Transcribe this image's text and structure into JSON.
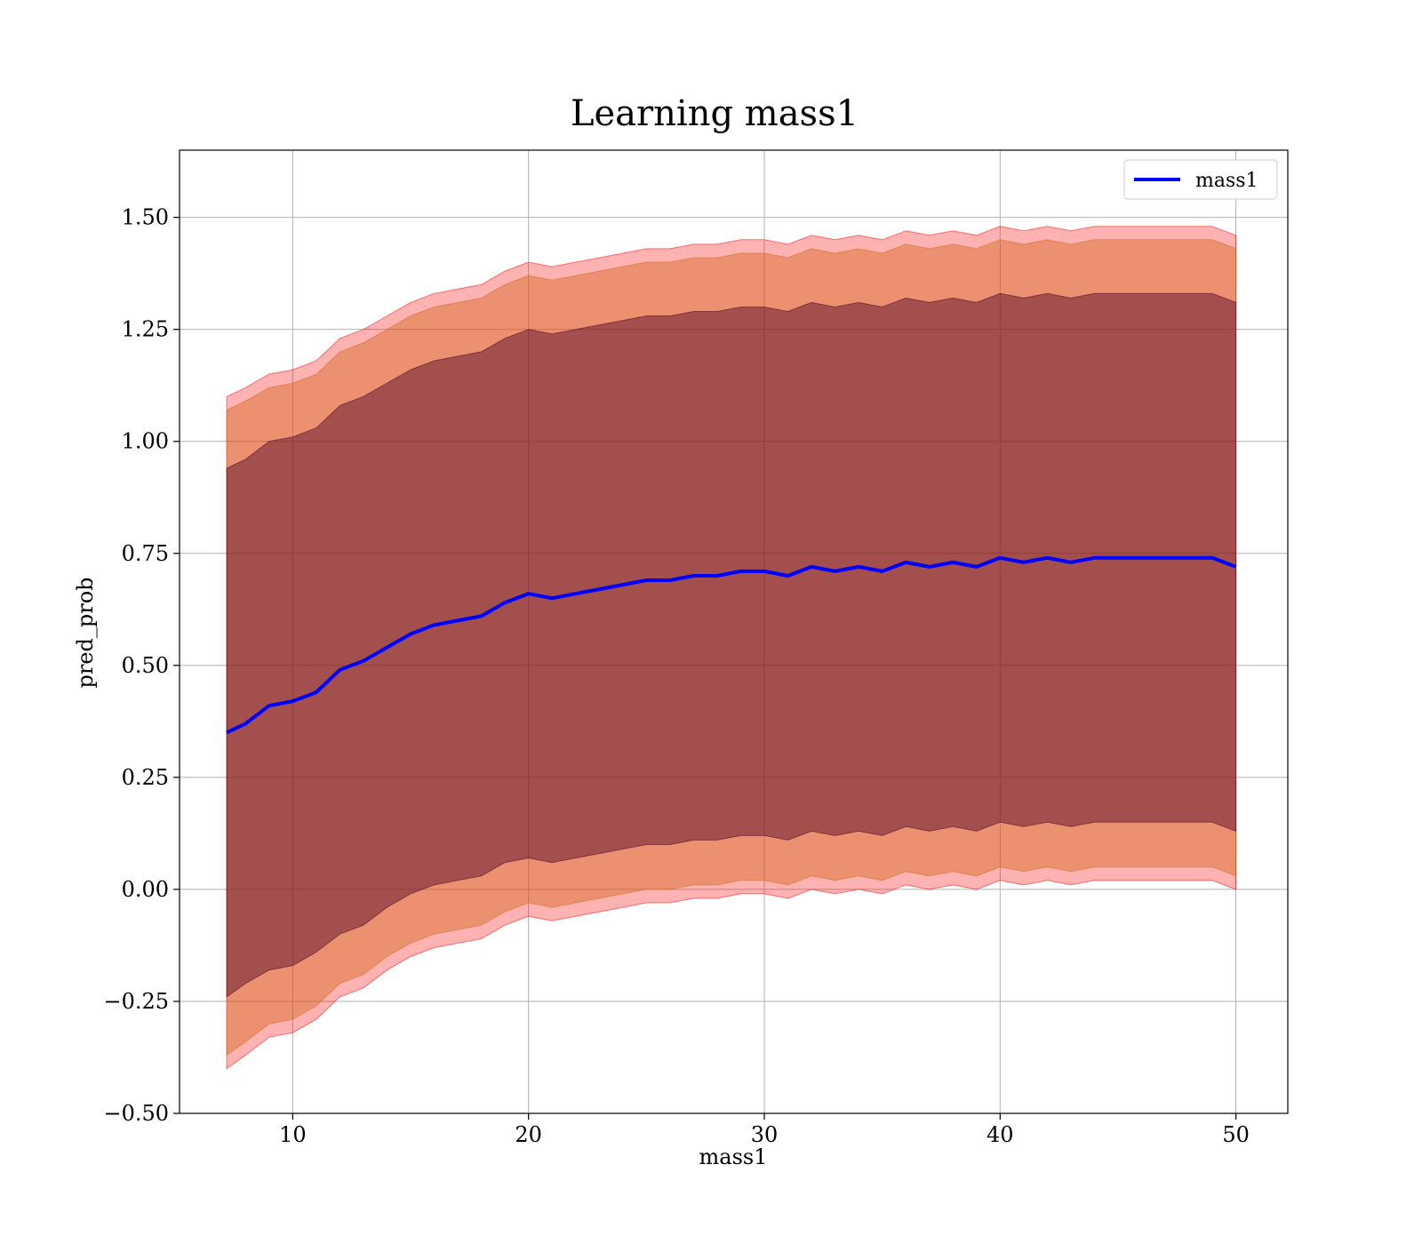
{
  "chart_data": {
    "type": "line",
    "title": "Learning mass1",
    "xlabel": "mass1",
    "ylabel": "pred_prob",
    "xlim": [
      5.2,
      52.2
    ],
    "ylim": [
      -0.5,
      1.65
    ],
    "xticks": [
      10,
      20,
      30,
      40,
      50
    ],
    "xtick_labels": [
      "10",
      "20",
      "30",
      "40",
      "50"
    ],
    "yticks": [
      -0.5,
      -0.25,
      0.0,
      0.25,
      0.5,
      0.75,
      1.0,
      1.25,
      1.5
    ],
    "ytick_labels": [
      "−0.50",
      "−0.25",
      "0.00",
      "0.25",
      "0.50",
      "0.75",
      "1.00",
      "1.25",
      "1.50"
    ],
    "grid": true,
    "legend": {
      "position": "top-right",
      "entries": [
        "mass1"
      ]
    },
    "colors": {
      "line": "#0000ff",
      "band_outer": "#ff0000",
      "band_middle": "#d2691e",
      "band_inner": "#4b0026"
    },
    "series": [
      {
        "name": "mass1",
        "x": [
          7.2,
          8,
          9,
          10,
          11,
          12,
          13,
          14,
          15,
          16,
          17,
          18,
          19,
          20,
          21,
          22,
          23,
          24,
          25,
          26,
          27,
          28,
          29,
          30,
          31,
          32,
          33,
          34,
          35,
          36,
          37,
          38,
          39,
          40,
          41,
          42,
          43,
          44,
          45,
          46,
          47,
          48,
          49,
          50
        ],
        "y": [
          0.35,
          0.37,
          0.41,
          0.42,
          0.44,
          0.49,
          0.51,
          0.54,
          0.57,
          0.59,
          0.6,
          0.61,
          0.64,
          0.66,
          0.65,
          0.66,
          0.67,
          0.68,
          0.69,
          0.69,
          0.7,
          0.7,
          0.71,
          0.71,
          0.7,
          0.72,
          0.71,
          0.72,
          0.71,
          0.73,
          0.72,
          0.73,
          0.72,
          0.74,
          0.73,
          0.74,
          0.73,
          0.74,
          0.74,
          0.74,
          0.74,
          0.74,
          0.74,
          0.72
        ]
      }
    ],
    "bands": [
      {
        "lower": [
          -0.4,
          -0.37,
          -0.33,
          -0.32,
          -0.29,
          -0.24,
          -0.22,
          -0.18,
          -0.15,
          -0.13,
          -0.12,
          -0.11,
          -0.08,
          -0.06,
          -0.07,
          -0.06,
          -0.05,
          -0.04,
          -0.03,
          -0.03,
          -0.02,
          -0.02,
          -0.01,
          -0.01,
          -0.02,
          0.0,
          -0.01,
          0.0,
          -0.01,
          0.01,
          0.0,
          0.01,
          0.0,
          0.02,
          0.01,
          0.02,
          0.01,
          0.02,
          0.02,
          0.02,
          0.02,
          0.02,
          0.02,
          0.0
        ],
        "upper": [
          1.1,
          1.12,
          1.15,
          1.16,
          1.18,
          1.23,
          1.25,
          1.28,
          1.31,
          1.33,
          1.34,
          1.35,
          1.38,
          1.4,
          1.39,
          1.4,
          1.41,
          1.42,
          1.43,
          1.43,
          1.44,
          1.44,
          1.45,
          1.45,
          1.44,
          1.46,
          1.45,
          1.46,
          1.45,
          1.47,
          1.46,
          1.47,
          1.46,
          1.48,
          1.47,
          1.48,
          1.47,
          1.48,
          1.48,
          1.48,
          1.48,
          1.48,
          1.48,
          1.46
        ]
      },
      {
        "lower": [
          -0.37,
          -0.34,
          -0.3,
          -0.29,
          -0.26,
          -0.21,
          -0.19,
          -0.15,
          -0.12,
          -0.1,
          -0.09,
          -0.08,
          -0.05,
          -0.03,
          -0.04,
          -0.03,
          -0.02,
          -0.01,
          0.0,
          0.0,
          0.01,
          0.01,
          0.02,
          0.02,
          0.01,
          0.03,
          0.02,
          0.03,
          0.02,
          0.04,
          0.03,
          0.04,
          0.03,
          0.05,
          0.04,
          0.05,
          0.04,
          0.05,
          0.05,
          0.05,
          0.05,
          0.05,
          0.05,
          0.03
        ],
        "upper": [
          1.07,
          1.09,
          1.12,
          1.13,
          1.15,
          1.2,
          1.22,
          1.25,
          1.28,
          1.3,
          1.31,
          1.32,
          1.35,
          1.37,
          1.36,
          1.37,
          1.38,
          1.39,
          1.4,
          1.4,
          1.41,
          1.41,
          1.42,
          1.42,
          1.41,
          1.43,
          1.42,
          1.43,
          1.42,
          1.44,
          1.43,
          1.44,
          1.43,
          1.45,
          1.44,
          1.45,
          1.44,
          1.45,
          1.45,
          1.45,
          1.45,
          1.45,
          1.45,
          1.43
        ]
      },
      {
        "lower": [
          -0.24,
          -0.21,
          -0.18,
          -0.17,
          -0.14,
          -0.1,
          -0.08,
          -0.04,
          -0.01,
          0.01,
          0.02,
          0.03,
          0.06,
          0.07,
          0.06,
          0.07,
          0.08,
          0.09,
          0.1,
          0.1,
          0.11,
          0.11,
          0.12,
          0.12,
          0.11,
          0.13,
          0.12,
          0.13,
          0.12,
          0.14,
          0.13,
          0.14,
          0.13,
          0.15,
          0.14,
          0.15,
          0.14,
          0.15,
          0.15,
          0.15,
          0.15,
          0.15,
          0.15,
          0.13
        ],
        "upper": [
          0.94,
          0.96,
          1.0,
          1.01,
          1.03,
          1.08,
          1.1,
          1.13,
          1.16,
          1.18,
          1.19,
          1.2,
          1.23,
          1.25,
          1.24,
          1.25,
          1.26,
          1.27,
          1.28,
          1.28,
          1.29,
          1.29,
          1.3,
          1.3,
          1.29,
          1.31,
          1.3,
          1.31,
          1.3,
          1.32,
          1.31,
          1.32,
          1.31,
          1.33,
          1.32,
          1.33,
          1.32,
          1.33,
          1.33,
          1.33,
          1.33,
          1.33,
          1.33,
          1.31
        ]
      }
    ]
  }
}
